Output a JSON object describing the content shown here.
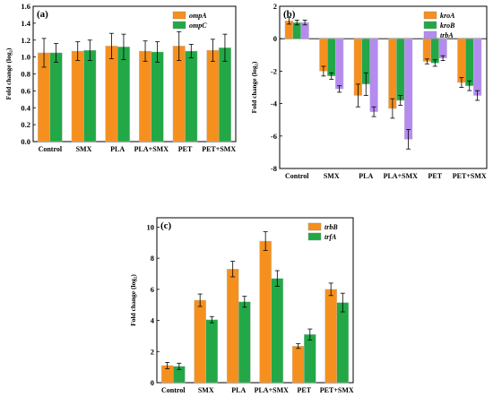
{
  "chart_data": [
    {
      "type": "bar",
      "panel_label": "(a)",
      "categories": [
        "Control",
        "SMX",
        "PLA",
        "PLA+SMX",
        "PET",
        "PET+SMX"
      ],
      "ylabel": "Fold change (log₂)",
      "ylim": [
        0,
        1.6
      ],
      "yticks": [
        "0.0",
        "0.2",
        "0.4",
        "0.6",
        "0.8",
        "1.0",
        "1.2",
        "1.4",
        "1.6"
      ],
      "legend_position": "top-right",
      "series": [
        {
          "name": "ompA",
          "color": "#F5901E",
          "values": [
            1.05,
            1.07,
            1.13,
            1.07,
            1.13,
            1.08
          ],
          "errors": [
            0.17,
            0.11,
            0.15,
            0.12,
            0.17,
            0.13
          ]
        },
        {
          "name": "ompC",
          "color": "#22A847",
          "values": [
            1.05,
            1.08,
            1.12,
            1.06,
            1.07,
            1.11
          ],
          "errors": [
            0.11,
            0.12,
            0.15,
            0.12,
            0.08,
            0.16
          ]
        }
      ]
    },
    {
      "type": "bar",
      "panel_label": "(b)",
      "categories": [
        "Control",
        "SMX",
        "PLA",
        "PLA+SMX",
        "PET",
        "PET+SMX"
      ],
      "ylabel": "Fold change (log₂)",
      "ylim": [
        -8,
        2
      ],
      "yticks": [
        "-8",
        "-6",
        "-4",
        "-2",
        "0",
        "2"
      ],
      "legend_position": "top-right",
      "series": [
        {
          "name": "kroA",
          "color": "#F5901E",
          "values": [
            1.1,
            -2.0,
            -3.5,
            -4.3,
            -1.4,
            -2.7
          ],
          "errors": [
            0.2,
            0.3,
            0.7,
            0.6,
            0.15,
            0.3
          ]
        },
        {
          "name": "kroB",
          "color": "#22A847",
          "values": [
            1.0,
            -2.3,
            -2.8,
            -3.8,
            -1.5,
            -2.9
          ],
          "errors": [
            0.15,
            0.2,
            0.7,
            0.3,
            0.2,
            0.3
          ]
        },
        {
          "name": "trbA",
          "color": "#B48CF0",
          "values": [
            1.0,
            -3.1,
            -4.5,
            -6.2,
            -1.2,
            -3.5
          ],
          "errors": [
            0.15,
            0.2,
            0.3,
            0.6,
            0.15,
            0.3
          ]
        }
      ]
    },
    {
      "type": "bar",
      "panel_label": "(c)",
      "categories": [
        "Control",
        "SMX",
        "PLA",
        "PLA+SMX",
        "PET",
        "PET+SMX"
      ],
      "ylabel": "Fold change (log₂)",
      "ylim": [
        0,
        10.6
      ],
      "yticks": [
        "0",
        "2",
        "4",
        "6",
        "8",
        "10"
      ],
      "legend_position": "top-right",
      "series": [
        {
          "name": "trbB",
          "color": "#F5901E",
          "values": [
            1.1,
            5.3,
            7.3,
            9.1,
            2.35,
            6.0
          ],
          "errors": [
            0.2,
            0.4,
            0.5,
            0.6,
            0.15,
            0.4
          ]
        },
        {
          "name": "trfA",
          "color": "#22A847",
          "values": [
            1.05,
            4.05,
            5.2,
            6.7,
            3.1,
            5.15
          ],
          "errors": [
            0.2,
            0.2,
            0.35,
            0.5,
            0.35,
            0.6
          ]
        }
      ]
    }
  ]
}
